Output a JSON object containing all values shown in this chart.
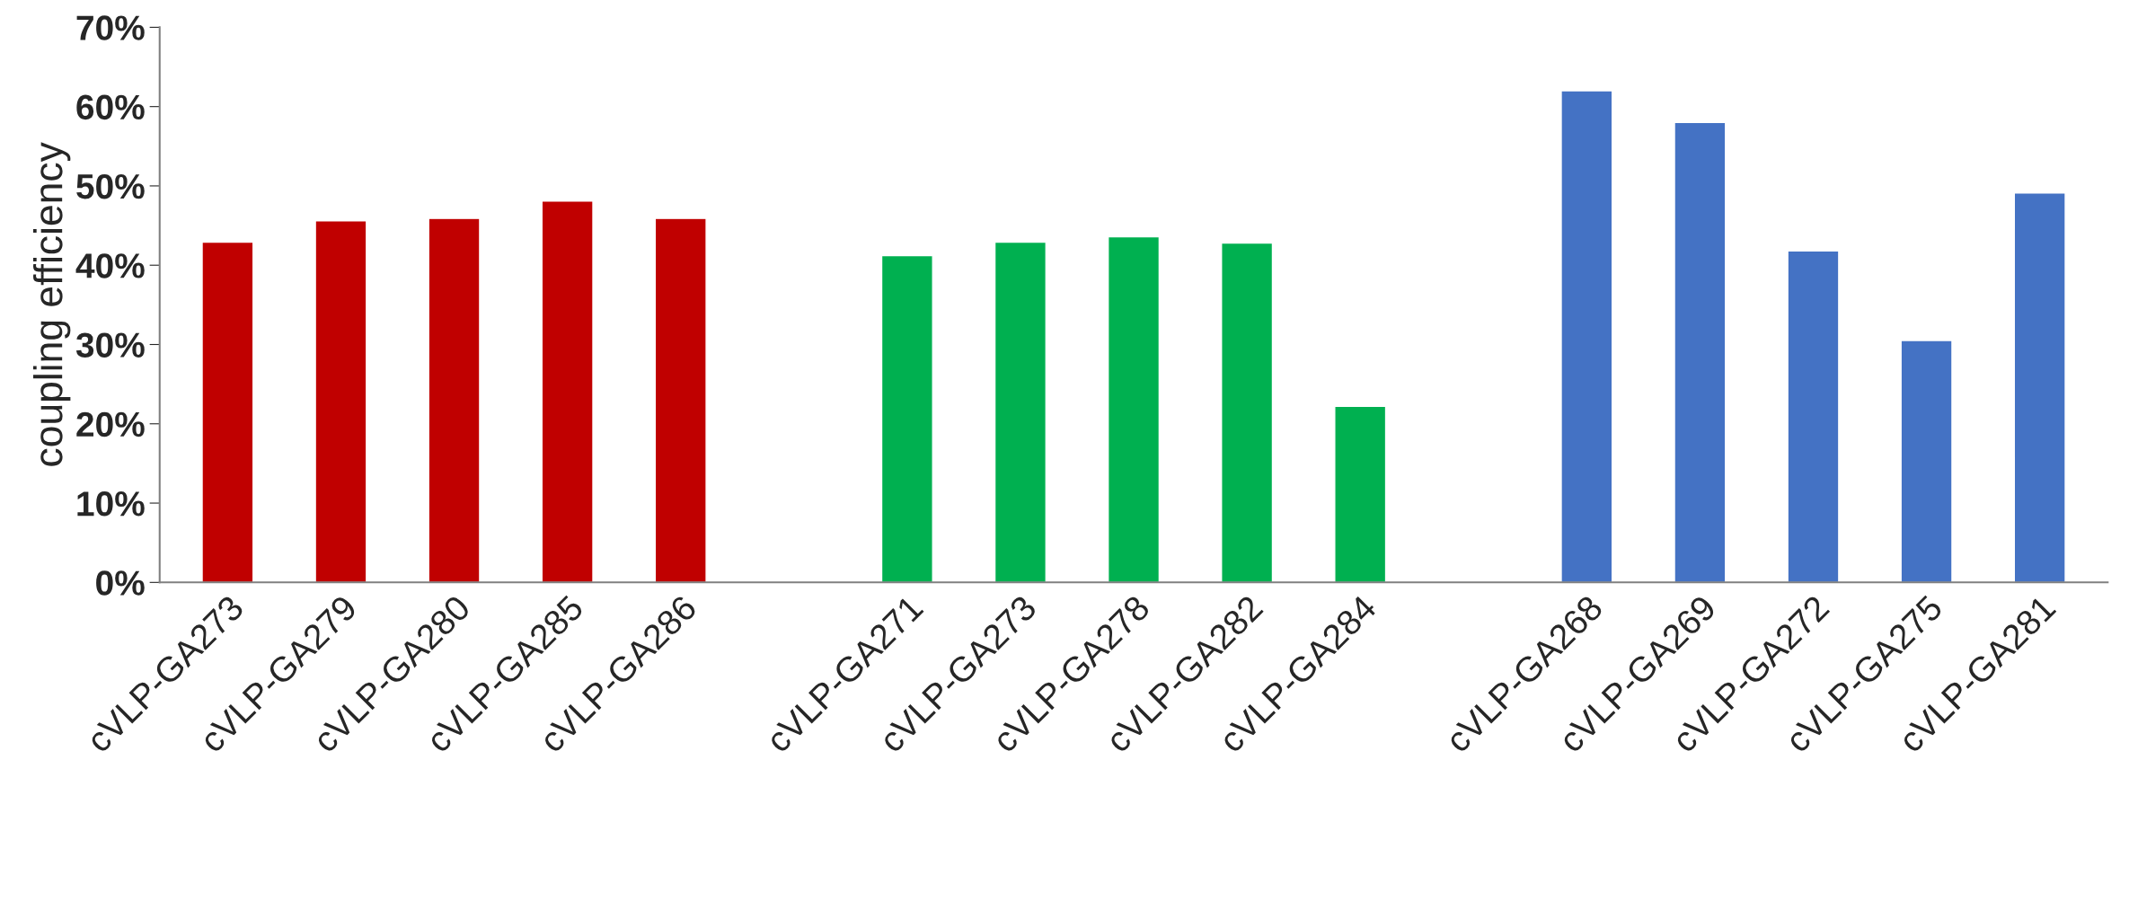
{
  "chart_data": {
    "type": "bar",
    "ylabel": "coupling efficiency",
    "categories": [
      "cVLP-GA273",
      "cVLP-GA279",
      "cVLP-GA280",
      "cVLP-GA285",
      "cVLP-GA286",
      null,
      "cVLP-GA271",
      "cVLP-GA273",
      "cVLP-GA278",
      "cVLP-GA282",
      "cVLP-GA284",
      null,
      "cVLP-GA268",
      "cVLP-GA269",
      "cVLP-GA272",
      "cVLP-GA275",
      "cVLP-GA281"
    ],
    "values": [
      42.9,
      45.6,
      45.9,
      48.1,
      45.9,
      null,
      41.2,
      42.9,
      43.6,
      42.8,
      22.2,
      null,
      62.0,
      58.0,
      41.8,
      30.5,
      49.1
    ],
    "colors": [
      "#c00000",
      "#c00000",
      "#c00000",
      "#c00000",
      "#c00000",
      null,
      "#00b050",
      "#00b050",
      "#00b050",
      "#00b050",
      "#00b050",
      null,
      "#4472c4",
      "#4472c4",
      "#4472c4",
      "#4472c4",
      "#4472c4"
    ],
    "ylim": [
      0,
      70
    ],
    "yticks": [
      {
        "value": 0,
        "label": "0%"
      },
      {
        "value": 10,
        "label": "10%"
      },
      {
        "value": 20,
        "label": "20%"
      },
      {
        "value": 30,
        "label": "30%"
      },
      {
        "value": 40,
        "label": "40%"
      },
      {
        "value": 50,
        "label": "50%"
      },
      {
        "value": 60,
        "label": "60%"
      },
      {
        "value": 70,
        "label": "70%"
      }
    ],
    "grid": false
  }
}
